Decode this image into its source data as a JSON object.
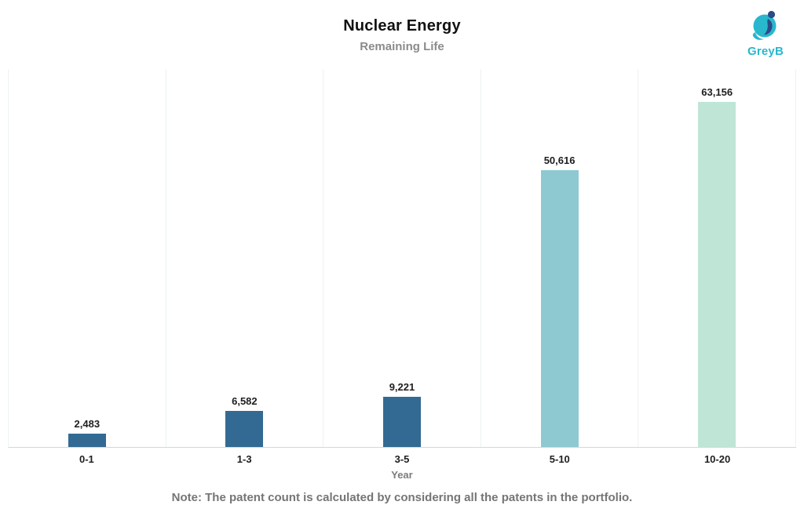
{
  "header": {
    "title": "Nuclear Energy",
    "subtitle": "Remaining Life"
  },
  "logo": {
    "text": "GreyB",
    "teal": "#29b7cd",
    "navy": "#2c4a87"
  },
  "chart_data": {
    "type": "bar",
    "categories": [
      "0-1",
      "1-3",
      "3-5",
      "5-10",
      "10-20"
    ],
    "values": [
      2483,
      6582,
      9221,
      50616,
      63156
    ],
    "value_labels": [
      "2,483",
      "6,582",
      "9,221",
      "50,616",
      "63,156"
    ],
    "bar_colors": [
      "#336a93",
      "#336a93",
      "#336a93",
      "#8ec9d2",
      "#bfe5d6"
    ],
    "title": "Nuclear Energy",
    "subtitle": "Remaining Life",
    "xlabel": "Year",
    "ylabel": "",
    "ylim": [
      0,
      63156
    ],
    "legend_position": "none",
    "grid": "faint-vertical-pane-dividers"
  },
  "footer": {
    "note": "Note: The patent count is calculated by considering all the patents in the portfolio."
  }
}
